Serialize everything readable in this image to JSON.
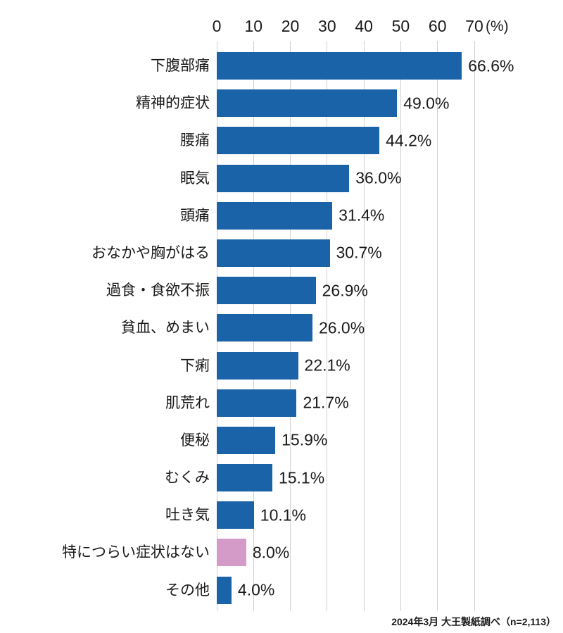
{
  "colors": {
    "bar_blue": "#1b63a9",
    "bar_pink": "#d49bc8",
    "gridline": "#d0d0d0",
    "text": "#1a1a1a"
  },
  "chart_data": {
    "type": "bar",
    "orientation": "horizontal",
    "title": "",
    "categories": [
      "下腹部痛",
      "精神的症状",
      "腰痛",
      "眠気",
      "頭痛",
      "おなかや胸がはる",
      "過食・食欲不振",
      "貧血、めまい",
      "下痢",
      "肌荒れ",
      "便秘",
      "むくみ",
      "吐き気",
      "特につらい症状はない",
      "その他"
    ],
    "values": [
      66.6,
      49.0,
      44.2,
      36.0,
      31.4,
      30.7,
      26.9,
      26.0,
      22.1,
      21.7,
      15.9,
      15.1,
      10.1,
      8.0,
      4.0
    ],
    "value_labels": [
      "66.6%",
      "49.0%",
      "44.2%",
      "36.0%",
      "31.4%",
      "30.7%",
      "26.9%",
      "26.0%",
      "22.1%",
      "21.7%",
      "15.9%",
      "15.1%",
      "10.1%",
      "8.0%",
      "4.0%"
    ],
    "bar_colors": [
      "#1b63a9",
      "#1b63a9",
      "#1b63a9",
      "#1b63a9",
      "#1b63a9",
      "#1b63a9",
      "#1b63a9",
      "#1b63a9",
      "#1b63a9",
      "#1b63a9",
      "#1b63a9",
      "#1b63a9",
      "#1b63a9",
      "#d49bc8",
      "#1b63a9"
    ],
    "highlight_index": 13,
    "x_ticks": [
      "0",
      "10",
      "20",
      "30",
      "40",
      "50",
      "60",
      "70"
    ],
    "xlim": [
      0,
      70
    ],
    "x_unit": "(%)",
    "grid": true,
    "legend": false,
    "source_note": "2024年3月 大王製紙調べ（n=2,113）"
  }
}
